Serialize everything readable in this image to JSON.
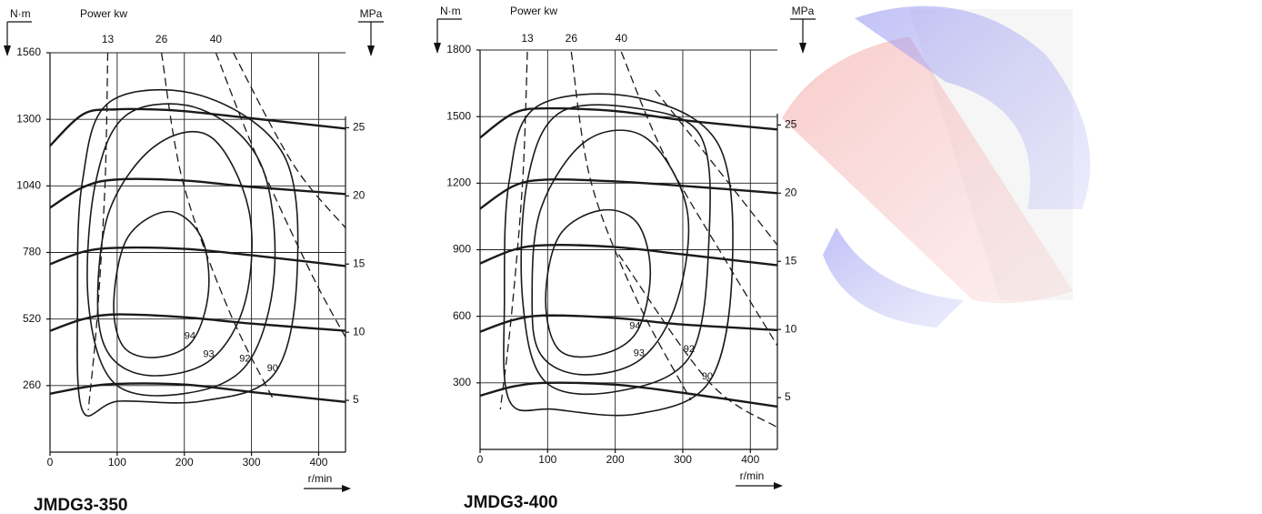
{
  "chart_data": [
    {
      "type": "line",
      "title": "JMDG3-350",
      "y_label": "N·m",
      "y2_label": "MPa",
      "x_label": "r/min",
      "power_label": "Power kw",
      "xlim": [
        0,
        440
      ],
      "ylim": [
        0,
        1560
      ],
      "y2lim": [
        1.2,
        30.5
      ],
      "grid": true,
      "xticks": [
        0,
        100,
        200,
        300,
        400
      ],
      "yticks": [
        260,
        520,
        780,
        1040,
        1300,
        1560
      ],
      "y2ticks": [
        5,
        10,
        15,
        20,
        25
      ],
      "series": [
        {
          "style": "thick",
          "color": "#1a1a1a",
          "x": [
            0,
            50,
            100,
            150,
            200,
            300,
            440
          ],
          "values": [
            1197,
            1321,
            1339,
            1339,
            1332,
            1304,
            1264
          ]
        },
        {
          "style": "thick",
          "color": "#1a1a1a",
          "x": [
            0,
            50,
            100,
            200,
            300,
            440
          ],
          "values": [
            955,
            1036,
            1065,
            1061,
            1036,
            1008
          ]
        },
        {
          "style": "thick",
          "color": "#1a1a1a",
          "x": [
            0,
            50,
            100,
            200,
            300,
            440
          ],
          "values": [
            734,
            783,
            798,
            794,
            769,
            727
          ]
        },
        {
          "style": "thick",
          "color": "#1a1a1a",
          "x": [
            0,
            50,
            100,
            200,
            300,
            440
          ],
          "values": [
            474,
            520,
            538,
            527,
            502,
            474
          ]
        },
        {
          "style": "thick",
          "color": "#1a1a1a",
          "x": [
            0,
            50,
            100,
            200,
            300,
            440
          ],
          "values": [
            228,
            253,
            267,
            264,
            235,
            196
          ]
        },
        {
          "name": "94",
          "style": "contour",
          "color": "#1a1a1a",
          "x": [
            95,
            116,
            177,
            225,
            236,
            211,
            157,
            109
          ],
          "values": [
            591,
            840,
            940,
            840,
            627,
            431,
            370,
            413
          ]
        },
        {
          "name": "93",
          "style": "contour",
          "color": "#1a1a1a",
          "x": [
            71,
            89,
            157,
            239,
            296,
            291,
            239,
            150,
            89
          ],
          "values": [
            591,
            947,
            1197,
            1232,
            947,
            591,
            360,
            299,
            378
          ]
        },
        {
          "name": "92",
          "style": "contour",
          "color": "#1a1a1a",
          "x": [
            57,
            68,
            116,
            225,
            314,
            334,
            293,
            198,
            95
          ],
          "values": [
            591,
            1054,
            1321,
            1339,
            1125,
            698,
            342,
            228,
            271
          ]
        },
        {
          "name": "90",
          "style": "contour",
          "color": "#1a1a1a",
          "x": [
            48,
            41,
            48,
            89,
            225,
            348,
            368,
            334,
            225,
            102
          ],
          "values": [
            164,
            591,
            1054,
            1368,
            1393,
            1161,
            698,
            306,
            199,
            199
          ]
        },
        {
          "name": "13",
          "style": "dashed",
          "color": "#1a1a1a",
          "x": [
            86,
            82,
            70,
            57
          ],
          "values": [
            1560,
            1054,
            520,
            164
          ]
        },
        {
          "name": "26",
          "style": "dashed",
          "color": "#1a1a1a",
          "x": [
            166,
            198,
            266,
            334
          ],
          "values": [
            1560,
            1054,
            556,
            199
          ]
        },
        {
          "name": "40",
          "style": "dashed",
          "color": "#1a1a1a",
          "x": [
            247,
            307,
            389,
            440
          ],
          "values": [
            1560,
            1161,
            698,
            449
          ]
        },
        {
          "style": "dashed",
          "color": "#1a1a1a",
          "x": [
            273,
            362,
            440
          ],
          "values": [
            1560,
            1125,
            876
          ]
        }
      ]
    },
    {
      "type": "line",
      "title": "JMDG3-400",
      "y_label": "N·m",
      "y2_label": "MPa",
      "x_label": "r/min",
      "power_label": "Power kw",
      "xlim": [
        0,
        440
      ],
      "ylim": [
        0,
        1800
      ],
      "y2lim": [
        1.2,
        30.5
      ],
      "grid": true,
      "xticks": [
        0,
        100,
        200,
        300,
        400
      ],
      "yticks": [
        300,
        600,
        900,
        1200,
        1500,
        1800
      ],
      "y2ticks": [
        5,
        10,
        15,
        20,
        25
      ],
      "series": [
        {
          "style": "thick",
          "color": "#1a1a1a",
          "x": [
            0,
            50,
            100,
            200,
            300,
            440
          ],
          "values": [
            1405,
            1516,
            1537,
            1525,
            1484,
            1442
          ]
        },
        {
          "style": "thick",
          "color": "#1a1a1a",
          "x": [
            0,
            50,
            100,
            200,
            300,
            440
          ],
          "values": [
            1085,
            1188,
            1216,
            1208,
            1188,
            1155
          ]
        },
        {
          "style": "thick",
          "color": "#1a1a1a",
          "x": [
            0,
            50,
            100,
            200,
            300,
            440
          ],
          "values": [
            838,
            900,
            921,
            912,
            879,
            830
          ]
        },
        {
          "style": "thick",
          "color": "#1a1a1a",
          "x": [
            0,
            50,
            100,
            200,
            300,
            440
          ],
          "values": [
            530,
            584,
            604,
            592,
            563,
            538
          ]
        },
        {
          "style": "thick",
          "color": "#1a1a1a",
          "x": [
            0,
            50,
            100,
            200,
            300,
            440
          ],
          "values": [
            242,
            284,
            300,
            292,
            255,
            193
          ]
        },
        {
          "name": "94",
          "style": "contour",
          "color": "#1a1a1a",
          "x": [
            97,
            117,
            178,
            232,
            252,
            232,
            178,
            117
          ],
          "values": [
            674,
            962,
            1077,
            1023,
            797,
            530,
            427,
            448
          ]
        },
        {
          "name": "93",
          "style": "contour",
          "color": "#1a1a1a",
          "x": [
            77,
            90,
            158,
            245,
            306,
            292,
            238,
            151,
            90
          ],
          "values": [
            674,
            1085,
            1393,
            1405,
            1085,
            674,
            407,
            337,
            427
          ]
        },
        {
          "name": "92",
          "style": "contour",
          "color": "#1a1a1a",
          "x": [
            63,
            70,
            117,
            232,
            326,
            339,
            312,
            205,
            97
          ],
          "values": [
            674,
            1208,
            1516,
            1537,
            1414,
            962,
            427,
            263,
            304
          ]
        },
        {
          "name": "90",
          "style": "contour",
          "color": "#1a1a1a",
          "x": [
            43,
            36,
            43,
            84,
            232,
            353,
            373,
            339,
            232,
            110
          ],
          "values": [
            222,
            674,
            1208,
            1545,
            1586,
            1373,
            797,
            304,
            160,
            181
          ]
        },
        {
          "name": "13",
          "style": "dashed",
          "color": "#1a1a1a",
          "x": [
            70,
            63,
            46,
            30
          ],
          "values": [
            1792,
            1208,
            592,
            181
          ]
        },
        {
          "name": "26",
          "style": "dashed",
          "color": "#1a1a1a",
          "x": [
            135,
            164,
            232,
            312
          ],
          "values": [
            1792,
            1208,
            674,
            222
          ]
        },
        {
          "name": "40",
          "style": "dashed",
          "color": "#1a1a1a",
          "x": [
            209,
            272,
            366,
            440
          ],
          "values": [
            1792,
            1331,
            838,
            468
          ]
        },
        {
          "style": "dashed",
          "color": "#1a1a1a",
          "x": [
            259,
            366,
            440
          ],
          "values": [
            1619,
            1208,
            921
          ]
        },
        {
          "style": "dashed",
          "color": "#1a1a1a",
          "x": [
            205,
            339,
            440
          ],
          "values": [
            879,
            304,
            99
          ]
        }
      ]
    }
  ]
}
